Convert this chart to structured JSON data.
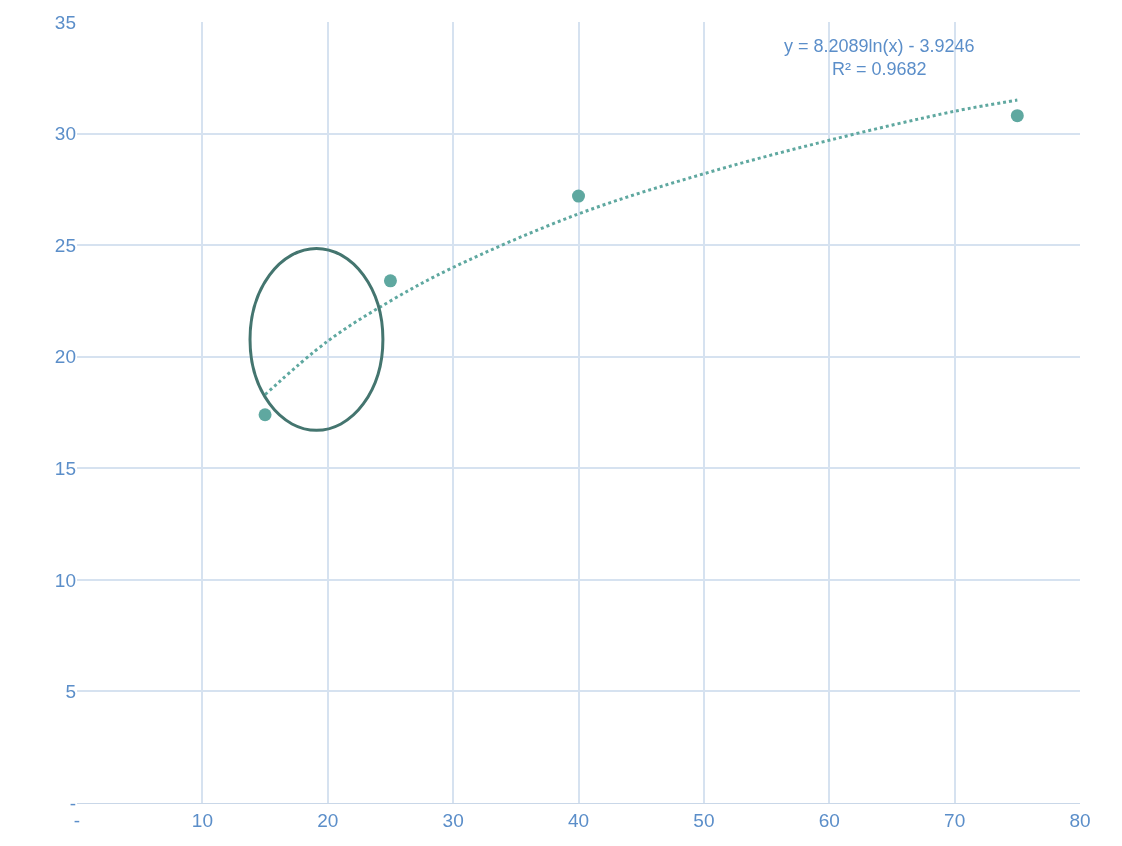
{
  "chart_data": {
    "type": "scatter",
    "series": [
      {
        "color": "#5fa8a0",
        "x": [
          15,
          25,
          40,
          75
        ],
        "values": [
          17.4,
          23.4,
          27.2,
          30.8
        ],
        "marker": "circle"
      },
      {
        "type": "line",
        "color": "#5fa8a0",
        "x": [
          15,
          20,
          25,
          30,
          40,
          50,
          60,
          70,
          75
        ],
        "values": [
          18.3,
          20.7,
          22.5,
          24.0,
          26.4,
          28.2,
          29.7,
          31.0,
          31.5
        ],
        "line_style": "dotted"
      }
    ],
    "annotations": [
      "y = 8.2089ln(x) - 3.9246",
      "R² = 0.9682"
    ],
    "xlim": [
      0,
      80
    ],
    "xticks": [
      {
        "value": 0,
        "label": "-"
      },
      10,
      20,
      30,
      40,
      50,
      60,
      70,
      80
    ],
    "ylim": [
      0,
      35
    ],
    "yticks": [
      {
        "value": 0,
        "label": "-"
      },
      5,
      10,
      15,
      20,
      25,
      30,
      35
    ],
    "grid": true
  }
}
